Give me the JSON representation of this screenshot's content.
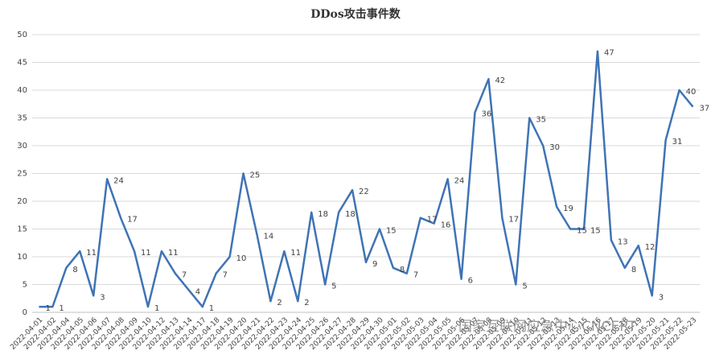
{
  "chart_data": {
    "type": "line",
    "title": "DDos攻击事件数",
    "categories": [
      "2022-04-01",
      "2022-04-02",
      "2022-04-04",
      "2022-04-05",
      "2022-04-06",
      "2022-04-07",
      "2022-04-08",
      "2022-04-09",
      "2022-04-10",
      "2022-04-12",
      "2022-04-13",
      "2022-04-14",
      "2022-04-17",
      "2022-04-18",
      "2022-04-19",
      "2022-04-20",
      "2022-04-21",
      "2022-04-22",
      "2022-04-23",
      "2022-04-24",
      "2022-04-25",
      "2022-04-26",
      "2022-04-27",
      "2022-04-28",
      "2022-04-29",
      "2022-04-30",
      "2022-05-01",
      "2022-05-02",
      "2022-05-03",
      "2022-05-04",
      "2022-05-05",
      "2022-05-06",
      "2022-05-07",
      "2022-05-08",
      "2022-05-09",
      "2022-05-10",
      "2022-05-11",
      "2022-05-12",
      "2022-05-13",
      "2022-05-14",
      "2022-05-15",
      "2022-05-16",
      "2022-05-17",
      "2022-05-18",
      "2022-05-19",
      "2022-05-20",
      "2022-05-21",
      "2022-05-22",
      "2022-05-23"
    ],
    "values": [
      1,
      1,
      8,
      11,
      3,
      24,
      17,
      11,
      1,
      11,
      7,
      4,
      1,
      7,
      10,
      25,
      14,
      2,
      11,
      2,
      18,
      5,
      18,
      22,
      9,
      15,
      8,
      7,
      17,
      16,
      24,
      6,
      36,
      42,
      17,
      5,
      35,
      30,
      19,
      15,
      15,
      47,
      13,
      8,
      12,
      3,
      31,
      40,
      37
    ],
    "color": "#3f73b5",
    "ylim": [
      0,
      50
    ],
    "yticks": [
      0,
      5,
      10,
      15,
      20,
      25,
      30,
      35,
      40,
      45,
      50
    ],
    "grid": true,
    "watermark": "国家互联网应急中心CNCERT"
  }
}
